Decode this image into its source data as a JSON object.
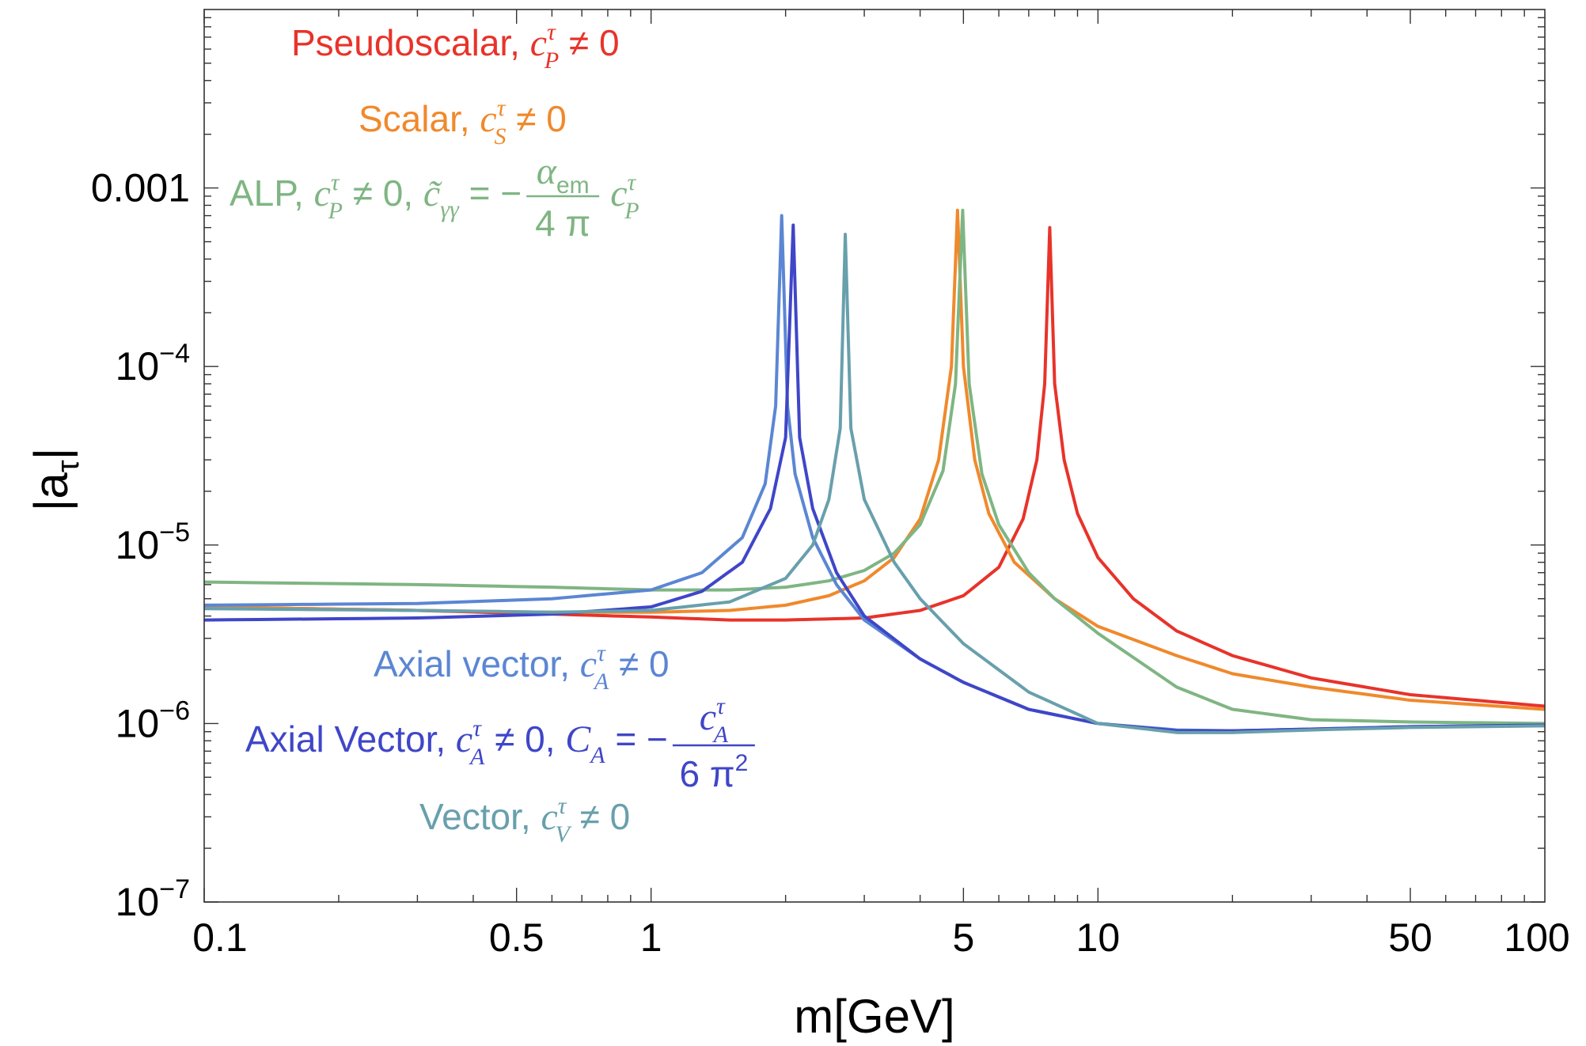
{
  "chart_data": {
    "type": "line",
    "xlabel": "m[GeV]",
    "ylabel": "|a_τ|",
    "x_scale": "log",
    "y_scale": "log",
    "xlim": [
      0.1,
      100
    ],
    "ylim": [
      1e-07,
      0.01
    ],
    "x_ticks": [
      {
        "value": 0.1,
        "label": "0.1"
      },
      {
        "value": 0.5,
        "label": "0.5"
      },
      {
        "value": 1,
        "label": "1"
      },
      {
        "value": 5,
        "label": "5"
      },
      {
        "value": 10,
        "label": "10"
      },
      {
        "value": 50,
        "label": "50"
      },
      {
        "value": 100,
        "label": "100"
      }
    ],
    "y_ticks": [
      {
        "value": 1e-07,
        "base": "10",
        "exp": "−7"
      },
      {
        "value": 1e-06,
        "base": "10",
        "exp": "−6"
      },
      {
        "value": 1e-05,
        "base": "10",
        "exp": "−5"
      },
      {
        "value": 0.0001,
        "base": "10",
        "exp": "−4"
      },
      {
        "value": 0.001,
        "label": "0.001"
      }
    ],
    "series": [
      {
        "name": "Pseudoscalar",
        "color": "#e8332a",
        "legend": {
          "prefix": "Pseudoscalar, ",
          "coef": "c",
          "sup": "τ",
          "sub": "P",
          "rest": " ≠ 0"
        },
        "points": [
          [
            0.1,
            4.5e-06
          ],
          [
            0.3,
            4.3e-06
          ],
          [
            0.6,
            4.1e-06
          ],
          [
            1.0,
            3.95e-06
          ],
          [
            1.5,
            3.8e-06
          ],
          [
            2.0,
            3.8e-06
          ],
          [
            3.0,
            3.9e-06
          ],
          [
            4.0,
            4.3e-06
          ],
          [
            5.0,
            5.2e-06
          ],
          [
            6.0,
            7.5e-06
          ],
          [
            6.8,
            1.4e-05
          ],
          [
            7.3,
            3e-05
          ],
          [
            7.6,
            8e-05
          ],
          [
            7.8,
            0.0006
          ],
          [
            8.0,
            8e-05
          ],
          [
            8.4,
            3e-05
          ],
          [
            9.0,
            1.5e-05
          ],
          [
            10,
            8.5e-06
          ],
          [
            12,
            5e-06
          ],
          [
            15,
            3.3e-06
          ],
          [
            20,
            2.4e-06
          ],
          [
            30,
            1.8e-06
          ],
          [
            50,
            1.45e-06
          ],
          [
            100,
            1.25e-06
          ]
        ]
      },
      {
        "name": "Scalar",
        "color": "#f0892c",
        "legend": {
          "prefix": "Scalar, ",
          "coef": "c",
          "sup": "τ",
          "sub": "S",
          "rest": " ≠ 0"
        },
        "points": [
          [
            0.1,
            4.5e-06
          ],
          [
            0.3,
            4.3e-06
          ],
          [
            0.6,
            4.2e-06
          ],
          [
            1.0,
            4.2e-06
          ],
          [
            1.5,
            4.3e-06
          ],
          [
            2.0,
            4.6e-06
          ],
          [
            2.5,
            5.2e-06
          ],
          [
            3.0,
            6.3e-06
          ],
          [
            3.5,
            8.5e-06
          ],
          [
            4.0,
            1.4e-05
          ],
          [
            4.4,
            3e-05
          ],
          [
            4.7,
            0.0001
          ],
          [
            4.85,
            0.00075
          ],
          [
            5.0,
            0.0001
          ],
          [
            5.3,
            3e-05
          ],
          [
            5.7,
            1.5e-05
          ],
          [
            6.5,
            8e-06
          ],
          [
            8,
            5e-06
          ],
          [
            10,
            3.5e-06
          ],
          [
            15,
            2.4e-06
          ],
          [
            20,
            1.9e-06
          ],
          [
            30,
            1.6e-06
          ],
          [
            50,
            1.35e-06
          ],
          [
            100,
            1.2e-06
          ]
        ]
      },
      {
        "name": "ALP",
        "color": "#7fb583",
        "legend": {
          "prefix": "ALP, ",
          "coef": "c",
          "sup": "τ",
          "sub": "P",
          "rest": " ≠ 0, ",
          "ctil": "c̃",
          "ctil_sub": "γγ",
          "eq": " = −",
          "frac_num": "α",
          "frac_num_sub": "em",
          "frac_den": "4 π",
          "tail_coef": "c",
          "tail_sup": "τ",
          "tail_sub": "P"
        },
        "points": [
          [
            0.1,
            6.2e-06
          ],
          [
            0.3,
            6e-06
          ],
          [
            0.6,
            5.8e-06
          ],
          [
            1.0,
            5.6e-06
          ],
          [
            1.5,
            5.6e-06
          ],
          [
            2.0,
            5.8e-06
          ],
          [
            2.5,
            6.3e-06
          ],
          [
            3.0,
            7.2e-06
          ],
          [
            3.5,
            9e-06
          ],
          [
            4.0,
            1.3e-05
          ],
          [
            4.5,
            2.6e-05
          ],
          [
            4.8,
            8e-05
          ],
          [
            4.98,
            0.00075
          ],
          [
            5.15,
            8e-05
          ],
          [
            5.5,
            2.5e-05
          ],
          [
            6,
            1.3e-05
          ],
          [
            7,
            7e-06
          ],
          [
            8,
            5e-06
          ],
          [
            10,
            3.2e-06
          ],
          [
            15,
            1.6e-06
          ],
          [
            20,
            1.2e-06
          ],
          [
            30,
            1.05e-06
          ],
          [
            50,
            1.02e-06
          ],
          [
            100,
            1e-06
          ]
        ]
      },
      {
        "name": "Axial vector",
        "color": "#5b86d3",
        "legend": {
          "prefix": "Axial vector, ",
          "coef": "c",
          "sup": "τ",
          "sub": "A",
          "rest": " ≠ 0"
        },
        "points": [
          [
            0.1,
            4.6e-06
          ],
          [
            0.3,
            4.7e-06
          ],
          [
            0.6,
            5e-06
          ],
          [
            1.0,
            5.6e-06
          ],
          [
            1.3,
            7e-06
          ],
          [
            1.6,
            1.1e-05
          ],
          [
            1.8,
            2.2e-05
          ],
          [
            1.9,
            6e-05
          ],
          [
            1.96,
            0.0007
          ],
          [
            2.02,
            6e-05
          ],
          [
            2.1,
            2.5e-05
          ],
          [
            2.3,
            1.1e-05
          ],
          [
            2.6,
            6e-06
          ],
          [
            3.0,
            3.8e-06
          ],
          [
            4,
            2.3e-06
          ],
          [
            5,
            1.7e-06
          ],
          [
            7,
            1.2e-06
          ],
          [
            10,
            1e-06
          ],
          [
            15,
            9.2e-07
          ],
          [
            20,
            9.1e-07
          ],
          [
            30,
            9.3e-07
          ],
          [
            50,
            9.6e-07
          ],
          [
            100,
            9.8e-07
          ]
        ]
      },
      {
        "name": "Axial Vector",
        "color": "#3f46c8",
        "legend": {
          "prefix": "Axial Vector, ",
          "coef": "c",
          "sup": "τ",
          "sub": "A",
          "rest": " ≠ 0, ",
          "C": "C",
          "C_sub": "A",
          "eq": " = −",
          "frac_num": "c",
          "frac_num_sup": "τ",
          "frac_num_sub": "A",
          "frac_den": "6 π",
          "frac_den_sup": "2"
        },
        "points": [
          [
            0.1,
            3.8e-06
          ],
          [
            0.3,
            3.9e-06
          ],
          [
            0.6,
            4.1e-06
          ],
          [
            1.0,
            4.5e-06
          ],
          [
            1.3,
            5.5e-06
          ],
          [
            1.6,
            8e-06
          ],
          [
            1.85,
            1.6e-05
          ],
          [
            2.0,
            4e-05
          ],
          [
            2.08,
            0.00062
          ],
          [
            2.15,
            4e-05
          ],
          [
            2.3,
            1.6e-05
          ],
          [
            2.6,
            7e-06
          ],
          [
            3.0,
            4e-06
          ],
          [
            4,
            2.3e-06
          ],
          [
            5,
            1.7e-06
          ],
          [
            7,
            1.2e-06
          ],
          [
            10,
            1e-06
          ],
          [
            15,
            9.1e-07
          ],
          [
            20,
            9.1e-07
          ],
          [
            30,
            9.3e-07
          ],
          [
            50,
            9.6e-07
          ],
          [
            100,
            9.8e-07
          ]
        ]
      },
      {
        "name": "Vector",
        "color": "#68a0ac",
        "legend": {
          "prefix": "Vector, ",
          "coef": "c",
          "sup": "τ",
          "sub": "V",
          "rest": " ≠ 0"
        },
        "points": [
          [
            0.1,
            4.4e-06
          ],
          [
            0.3,
            4.3e-06
          ],
          [
            0.6,
            4.2e-06
          ],
          [
            1.0,
            4.3e-06
          ],
          [
            1.5,
            4.8e-06
          ],
          [
            2.0,
            6.5e-06
          ],
          [
            2.3,
            1e-05
          ],
          [
            2.5,
            1.8e-05
          ],
          [
            2.65,
            4.5e-05
          ],
          [
            2.72,
            0.00055
          ],
          [
            2.8,
            4.5e-05
          ],
          [
            3.0,
            1.8e-05
          ],
          [
            3.5,
            8e-06
          ],
          [
            4,
            5e-06
          ],
          [
            5,
            2.8e-06
          ],
          [
            7,
            1.5e-06
          ],
          [
            10,
            1e-06
          ],
          [
            15,
            8.9e-07
          ],
          [
            20,
            8.9e-07
          ],
          [
            30,
            9.2e-07
          ],
          [
            50,
            9.5e-07
          ],
          [
            100,
            9.7e-07
          ]
        ]
      }
    ]
  }
}
